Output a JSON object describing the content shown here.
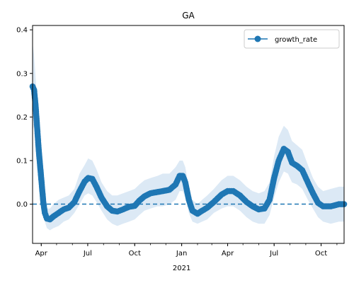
{
  "chart_data": {
    "type": "line",
    "title": "GA",
    "xlabel": "",
    "ylabel": "",
    "x_axis": {
      "kind": "date",
      "range": [
        "2020-03-15",
        "2021-11-15"
      ],
      "major_ticks": [
        {
          "date": "2020-04-01",
          "label": "Apr"
        },
        {
          "date": "2020-07-01",
          "label": "Jul"
        },
        {
          "date": "2020-10-01",
          "label": "Oct"
        },
        {
          "date": "2021-01-01",
          "label": "Jan"
        },
        {
          "date": "2021-04-01",
          "label": "Apr"
        },
        {
          "date": "2021-07-01",
          "label": "Jul"
        },
        {
          "date": "2021-10-01",
          "label": "Oct"
        }
      ],
      "year_label": {
        "date": "2021-01-01",
        "label": "2021"
      }
    },
    "y_axis": {
      "range": [
        -0.09,
        0.41
      ],
      "ticks": [
        0.0,
        0.1,
        0.2,
        0.3,
        0.4
      ],
      "tick_labels": [
        "0.0",
        "0.1",
        "0.2",
        "0.3",
        "0.4"
      ]
    },
    "reference_line": {
      "y": 0.0,
      "style": "dashed"
    },
    "legend": {
      "position": "top-right",
      "entries": [
        "growth_rate"
      ]
    },
    "series": [
      {
        "name": "growth_rate",
        "color": "#1f77b4",
        "band_color": "#dce9f5",
        "marker": "circle",
        "points": [
          {
            "x": "2020-03-15",
            "y": 0.27,
            "lo": 0.17,
            "hi": 0.37
          },
          {
            "x": "2020-03-18",
            "y": 0.262,
            "lo": 0.18,
            "hi": 0.34
          },
          {
            "x": "2020-03-21",
            "y": 0.225,
            "lo": 0.16,
            "hi": 0.29
          },
          {
            "x": "2020-03-24",
            "y": 0.175,
            "lo": 0.12,
            "hi": 0.23
          },
          {
            "x": "2020-03-27",
            "y": 0.125,
            "lo": 0.08,
            "hi": 0.17
          },
          {
            "x": "2020-03-30",
            "y": 0.085,
            "lo": 0.05,
            "hi": 0.12
          },
          {
            "x": "2020-04-02",
            "y": 0.045,
            "lo": 0.02,
            "hi": 0.07
          },
          {
            "x": "2020-04-05",
            "y": 0.005,
            "lo": -0.02,
            "hi": 0.03
          },
          {
            "x": "2020-04-08",
            "y": -0.02,
            "lo": -0.04,
            "hi": 0.005
          },
          {
            "x": "2020-04-12",
            "y": -0.033,
            "lo": -0.055,
            "hi": -0.01
          },
          {
            "x": "2020-04-18",
            "y": -0.035,
            "lo": -0.06,
            "hi": -0.01
          },
          {
            "x": "2020-04-25",
            "y": -0.028,
            "lo": -0.055,
            "hi": 0.0
          },
          {
            "x": "2020-05-05",
            "y": -0.02,
            "lo": -0.05,
            "hi": 0.01
          },
          {
            "x": "2020-05-15",
            "y": -0.012,
            "lo": -0.04,
            "hi": 0.015
          },
          {
            "x": "2020-05-25",
            "y": -0.008,
            "lo": -0.035,
            "hi": 0.02
          },
          {
            "x": "2020-06-05",
            "y": 0.005,
            "lo": -0.02,
            "hi": 0.035
          },
          {
            "x": "2020-06-15",
            "y": 0.03,
            "lo": 0.0,
            "hi": 0.07
          },
          {
            "x": "2020-06-25",
            "y": 0.052,
            "lo": 0.02,
            "hi": 0.09
          },
          {
            "x": "2020-07-02",
            "y": 0.06,
            "lo": 0.025,
            "hi": 0.105
          },
          {
            "x": "2020-07-10",
            "y": 0.058,
            "lo": 0.02,
            "hi": 0.1
          },
          {
            "x": "2020-07-18",
            "y": 0.04,
            "lo": 0.005,
            "hi": 0.08
          },
          {
            "x": "2020-07-28",
            "y": 0.015,
            "lo": -0.015,
            "hi": 0.05
          },
          {
            "x": "2020-08-08",
            "y": -0.005,
            "lo": -0.035,
            "hi": 0.03
          },
          {
            "x": "2020-08-18",
            "y": -0.015,
            "lo": -0.045,
            "hi": 0.02
          },
          {
            "x": "2020-08-28",
            "y": -0.017,
            "lo": -0.05,
            "hi": 0.02
          },
          {
            "x": "2020-09-08",
            "y": -0.012,
            "lo": -0.045,
            "hi": 0.025
          },
          {
            "x": "2020-09-20",
            "y": -0.006,
            "lo": -0.04,
            "hi": 0.03
          },
          {
            "x": "2020-10-01",
            "y": -0.004,
            "lo": -0.035,
            "hi": 0.035
          },
          {
            "x": "2020-10-10",
            "y": 0.008,
            "lo": -0.025,
            "hi": 0.045
          },
          {
            "x": "2020-10-20",
            "y": 0.018,
            "lo": -0.015,
            "hi": 0.055
          },
          {
            "x": "2020-11-01",
            "y": 0.025,
            "lo": -0.01,
            "hi": 0.06
          },
          {
            "x": "2020-11-15",
            "y": 0.028,
            "lo": -0.005,
            "hi": 0.065
          },
          {
            "x": "2020-11-25",
            "y": 0.03,
            "lo": -0.005,
            "hi": 0.07
          },
          {
            "x": "2020-12-08",
            "y": 0.033,
            "lo": 0.0,
            "hi": 0.07
          },
          {
            "x": "2020-12-20",
            "y": 0.045,
            "lo": 0.01,
            "hi": 0.085
          },
          {
            "x": "2020-12-28",
            "y": 0.065,
            "lo": 0.03,
            "hi": 0.1
          },
          {
            "x": "2021-01-03",
            "y": 0.065,
            "lo": 0.03,
            "hi": 0.1
          },
          {
            "x": "2021-01-08",
            "y": 0.05,
            "lo": 0.015,
            "hi": 0.085
          },
          {
            "x": "2021-01-15",
            "y": 0.01,
            "lo": -0.02,
            "hi": 0.04
          },
          {
            "x": "2021-01-22",
            "y": -0.015,
            "lo": -0.04,
            "hi": 0.01
          },
          {
            "x": "2021-02-01",
            "y": -0.022,
            "lo": -0.045,
            "hi": 0.0
          },
          {
            "x": "2021-02-10",
            "y": -0.015,
            "lo": -0.04,
            "hi": 0.01
          },
          {
            "x": "2021-02-20",
            "y": -0.008,
            "lo": -0.035,
            "hi": 0.02
          },
          {
            "x": "2021-03-05",
            "y": 0.005,
            "lo": -0.02,
            "hi": 0.035
          },
          {
            "x": "2021-03-20",
            "y": 0.022,
            "lo": -0.01,
            "hi": 0.055
          },
          {
            "x": "2021-04-01",
            "y": 0.03,
            "lo": -0.005,
            "hi": 0.065
          },
          {
            "x": "2021-04-12",
            "y": 0.03,
            "lo": -0.005,
            "hi": 0.065
          },
          {
            "x": "2021-04-25",
            "y": 0.02,
            "lo": -0.015,
            "hi": 0.055
          },
          {
            "x": "2021-05-08",
            "y": 0.005,
            "lo": -0.03,
            "hi": 0.04
          },
          {
            "x": "2021-05-20",
            "y": -0.005,
            "lo": -0.04,
            "hi": 0.03
          },
          {
            "x": "2021-06-01",
            "y": -0.012,
            "lo": -0.045,
            "hi": 0.025
          },
          {
            "x": "2021-06-12",
            "y": -0.01,
            "lo": -0.045,
            "hi": 0.03
          },
          {
            "x": "2021-06-22",
            "y": 0.01,
            "lo": -0.025,
            "hi": 0.05
          },
          {
            "x": "2021-07-01",
            "y": 0.06,
            "lo": 0.015,
            "hi": 0.11
          },
          {
            "x": "2021-07-10",
            "y": 0.1,
            "lo": 0.05,
            "hi": 0.155
          },
          {
            "x": "2021-07-20",
            "y": 0.127,
            "lo": 0.075,
            "hi": 0.18
          },
          {
            "x": "2021-07-28",
            "y": 0.12,
            "lo": 0.07,
            "hi": 0.17
          },
          {
            "x": "2021-08-05",
            "y": 0.095,
            "lo": 0.05,
            "hi": 0.145
          },
          {
            "x": "2021-08-15",
            "y": 0.088,
            "lo": 0.045,
            "hi": 0.135
          },
          {
            "x": "2021-08-25",
            "y": 0.078,
            "lo": 0.035,
            "hi": 0.125
          },
          {
            "x": "2021-09-05",
            "y": 0.05,
            "lo": 0.01,
            "hi": 0.09
          },
          {
            "x": "2021-09-15",
            "y": 0.025,
            "lo": -0.01,
            "hi": 0.06
          },
          {
            "x": "2021-09-25",
            "y": 0.003,
            "lo": -0.03,
            "hi": 0.04
          },
          {
            "x": "2021-10-05",
            "y": -0.005,
            "lo": -0.04,
            "hi": 0.03
          },
          {
            "x": "2021-10-20",
            "y": -0.005,
            "lo": -0.045,
            "hi": 0.035
          },
          {
            "x": "2021-11-05",
            "y": 0.0,
            "lo": -0.04,
            "hi": 0.04
          },
          {
            "x": "2021-11-15",
            "y": 0.0,
            "lo": -0.04,
            "hi": 0.04
          }
        ]
      }
    ]
  }
}
